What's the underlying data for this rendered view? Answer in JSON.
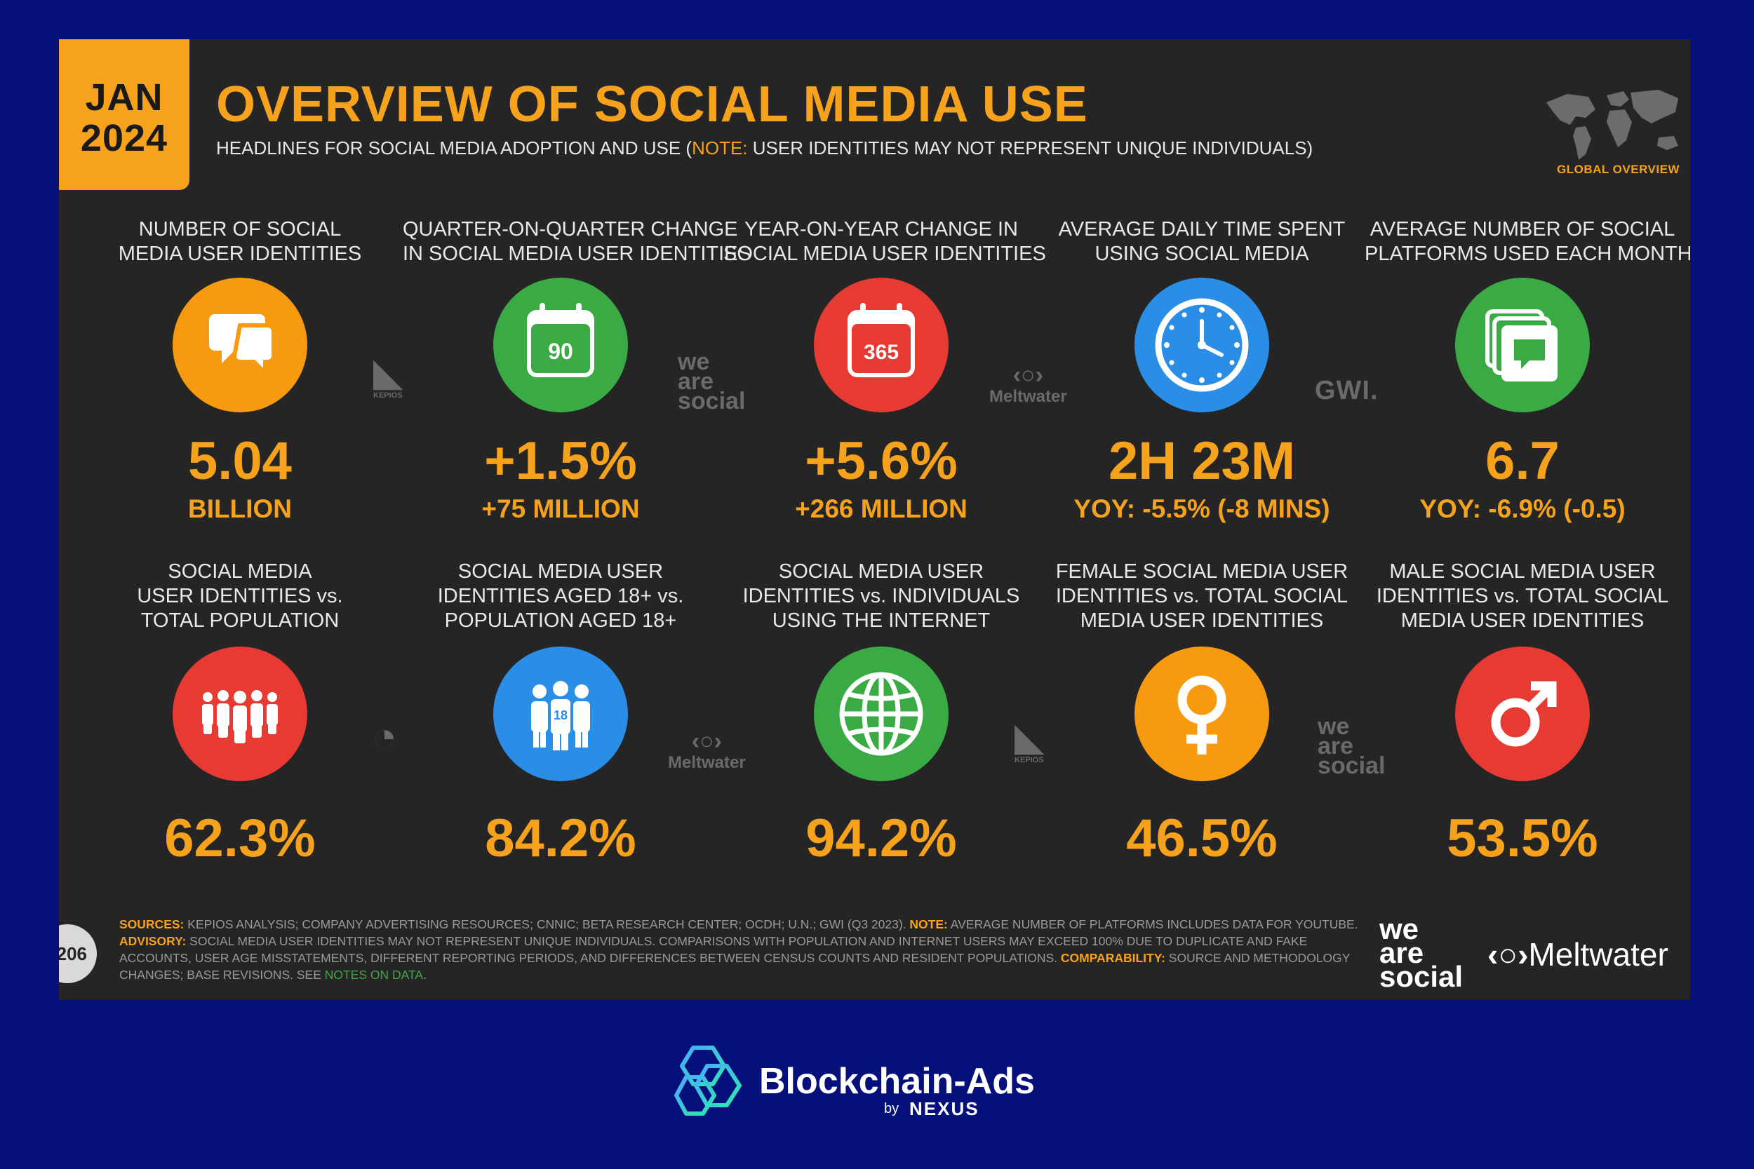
{
  "header": {
    "month": "JAN",
    "year": "2024",
    "title": "OVERVIEW OF SOCIAL MEDIA USE",
    "subtitle_pre": "HEADLINES FOR SOCIAL MEDIA ADOPTION AND USE (",
    "subtitle_note": "NOTE:",
    "subtitle_post": " USER IDENTITIES MAY NOT REPRESENT UNIQUE INDIVIDUALS)",
    "global_overview": "GLOBAL OVERVIEW"
  },
  "row1": [
    {
      "label1": "NUMBER OF SOCIAL",
      "label2": "MEDIA USER IDENTITIES",
      "value": "5.04",
      "sub": "BILLION",
      "icon": "speech-bubbles-icon",
      "color": "#f79a0f"
    },
    {
      "label1": "QUARTER-ON-QUARTER CHANGE",
      "label2": "IN SOCIAL MEDIA USER IDENTITIES",
      "value": "+1.5%",
      "sub": "+75 MILLION",
      "icon": "calendar-90-icon",
      "icon_text": "90",
      "color": "#3aaa45"
    },
    {
      "label1": "YEAR-ON-YEAR CHANGE IN",
      "label2": "SOCIAL MEDIA USER IDENTITIES",
      "value": "+5.6%",
      "sub": "+266 MILLION",
      "icon": "calendar-365-icon",
      "icon_text": "365",
      "color": "#e63a32"
    },
    {
      "label1": "AVERAGE DAILY TIME SPENT",
      "label2": "USING SOCIAL MEDIA",
      "value": "2H 23M",
      "sub": "YOY: -5.5% (-8 MINS)",
      "icon": "clock-icon",
      "color": "#2a8ee6"
    },
    {
      "label1": "AVERAGE NUMBER OF SOCIAL",
      "label2": "PLATFORMS USED EACH MONTH",
      "value": "6.7",
      "sub": "YOY: -6.9% (-0.5)",
      "icon": "stacked-platforms-icon",
      "color": "#3aaa45"
    }
  ],
  "row2": [
    {
      "label1": "SOCIAL MEDIA",
      "label2": "USER IDENTITIES vs.",
      "label3": "TOTAL POPULATION",
      "value": "62.3%",
      "icon": "people-group-icon",
      "color": "#e63a32"
    },
    {
      "label1": "SOCIAL MEDIA USER",
      "label2": "IDENTITIES AGED 18+ vs.",
      "label3": "POPULATION AGED 18+",
      "value": "84.2%",
      "icon": "adults-18-icon",
      "icon_text": "18",
      "color": "#2a8ee6"
    },
    {
      "label1": "SOCIAL MEDIA USER",
      "label2": "IDENTITIES vs. INDIVIDUALS",
      "label3": "USING THE INTERNET",
      "value": "94.2%",
      "icon": "globe-icon",
      "color": "#3aaa45"
    },
    {
      "label1": "FEMALE SOCIAL MEDIA USER",
      "label2": "IDENTITIES vs. TOTAL SOCIAL",
      "label3": "MEDIA USER IDENTITIES",
      "value": "46.5%",
      "icon": "female-symbol-icon",
      "color": "#f79a0f"
    },
    {
      "label1": "MALE SOCIAL MEDIA USER",
      "label2": "IDENTITIES vs. TOTAL SOCIAL",
      "label3": "MEDIA USER IDENTITIES",
      "value": "53.5%",
      "icon": "male-symbol-icon",
      "color": "#e63a32"
    }
  ],
  "watermarks": {
    "kepios": "KEPIOS",
    "was_1": "we",
    "was_2": "are",
    "was_3": "social",
    "meltwater": "Meltwater",
    "gwi": "GWI."
  },
  "footer": {
    "page_number": "206",
    "sources_key": "SOURCES:",
    "sources_text": " KEPIOS ANALYSIS; COMPANY ADVERTISING RESOURCES; CNNIC; BETA RESEARCH CENTER; OCDH; U.N.; GWI (Q3 2023). ",
    "note_key": "NOTE:",
    "note_text": " AVERAGE NUMBER OF PLATFORMS INCLUDES DATA FOR YOUTUBE.",
    "advisory_key": "ADVISORY:",
    "advisory_text": " SOCIAL MEDIA USER IDENTITIES MAY NOT REPRESENT UNIQUE INDIVIDUALS. COMPARISONS WITH POPULATION AND INTERNET USERS MAY EXCEED 100% DUE TO DUPLICATE AND FAKE",
    "advisory_text_2": "ACCOUNTS, USER AGE MISSTATEMENTS, DIFFERENT REPORTING PERIODS, AND DIFFERENCES BETWEEN CENSUS COUNTS AND RESIDENT POPULATIONS. ",
    "comparability_key": "COMPARABILITY:",
    "comparability_text": " SOURCE AND METHODOLOGY",
    "changes_text": "CHANGES; BASE REVISIONS. SEE ",
    "notes_link": "NOTES ON DATA",
    "period": ".",
    "logo_was_1": "we",
    "logo_was_2": "are",
    "logo_was_3": "social",
    "logo_meltwater": "Meltwater"
  },
  "brand": {
    "name": "Blockchain-Ads",
    "by": "by",
    "partner": "NEXUS"
  }
}
